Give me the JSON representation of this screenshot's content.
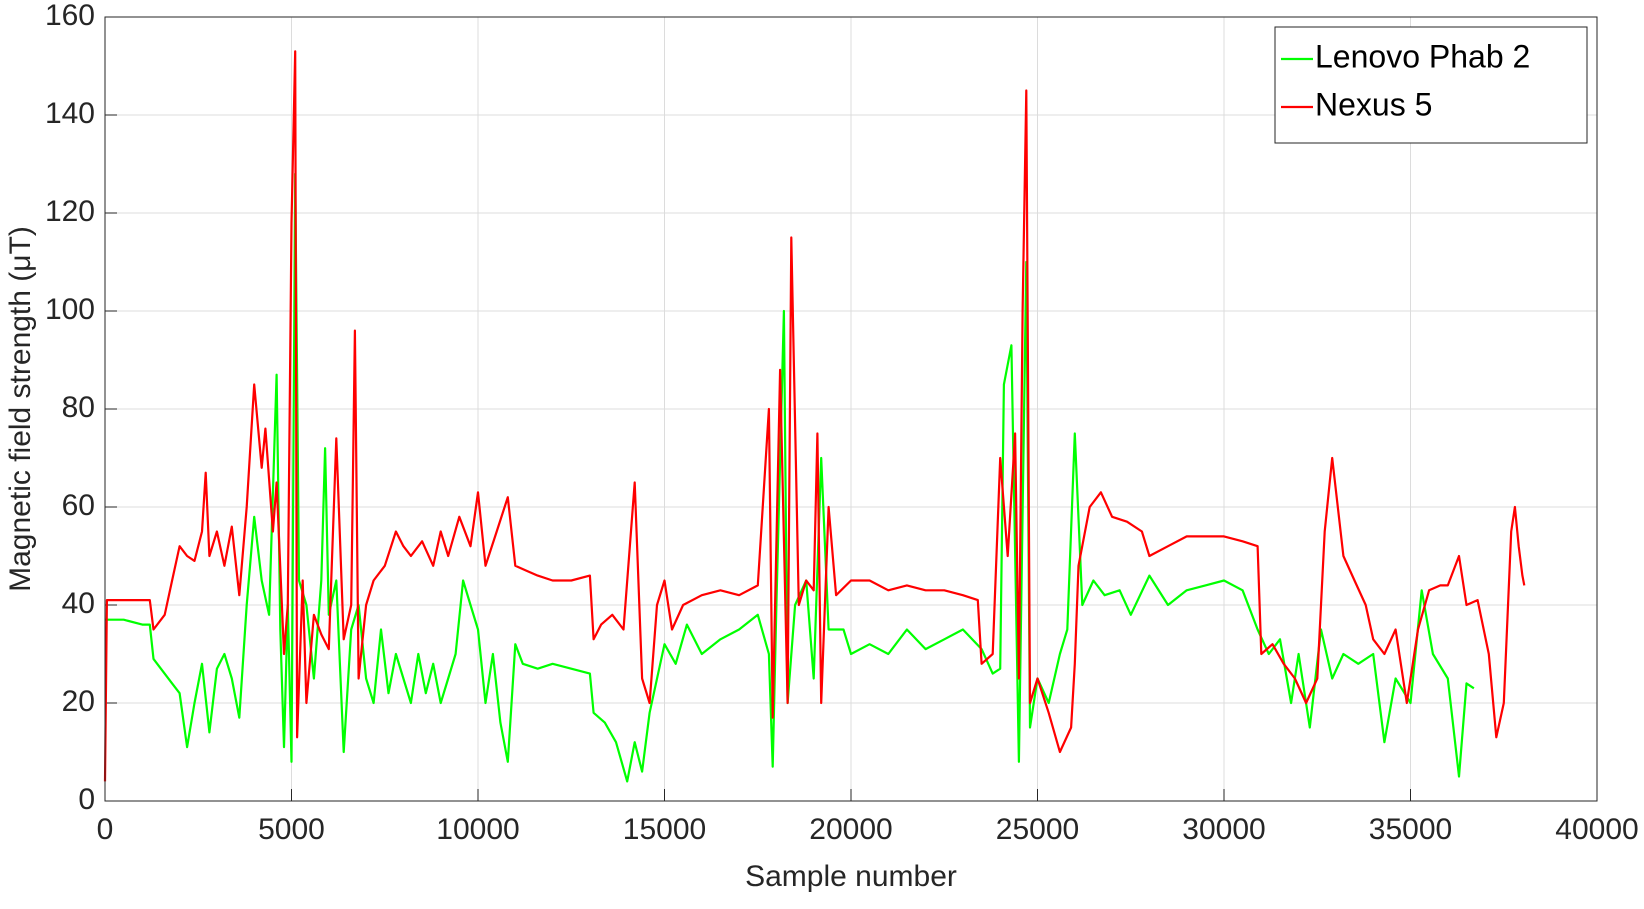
{
  "chart_data": {
    "type": "line",
    "xlabel": "Sample number",
    "ylabel": "Magnetic field strength (μT)",
    "xlim": [
      0,
      40000
    ],
    "xticks": [
      0,
      5000,
      10000,
      15000,
      20000,
      25000,
      30000,
      35000,
      40000
    ],
    "ylim": [
      0,
      160
    ],
    "yticks": [
      0,
      20,
      40,
      60,
      80,
      100,
      120,
      140,
      160
    ],
    "grid": true,
    "legend": "top-right",
    "series": [
      {
        "name": "Lenovo Phab 2",
        "color": "#00ff00",
        "x": [
          0,
          500,
          1000,
          1200,
          1300,
          1500,
          1800,
          2000,
          2200,
          2400,
          2600,
          2800,
          3000,
          3200,
          3400,
          3600,
          3800,
          4000,
          4200,
          4400,
          4600,
          4700,
          4800,
          4900,
          5000,
          5100,
          5200,
          5400,
          5600,
          5800,
          5900,
          6000,
          6200,
          6400,
          6600,
          6800,
          7000,
          7200,
          7400,
          7600,
          7800,
          8000,
          8200,
          8400,
          8600,
          8800,
          9000,
          9200,
          9400,
          9600,
          9800,
          10000,
          10200,
          10400,
          10600,
          10800,
          11000,
          11200,
          11600,
          12000,
          12500,
          13000,
          13100,
          13400,
          13700,
          14000,
          14200,
          14400,
          14600,
          15000,
          15300,
          15600,
          16000,
          16500,
          17000,
          17500,
          17800,
          17900,
          18000,
          18200,
          18300,
          18500,
          18800,
          19000,
          19200,
          19400,
          19800,
          20000,
          20500,
          21000,
          21500,
          22000,
          22500,
          23000,
          23500,
          23800,
          24000,
          24100,
          24300,
          24500,
          24700,
          24800,
          25000,
          25300,
          25600,
          25800,
          26000,
          26200,
          26500,
          26800,
          27200,
          27500,
          28000,
          28500,
          29000,
          29500,
          30000,
          30500,
          30900,
          31200,
          31500,
          31800,
          32000,
          32300,
          32600,
          32900,
          33200,
          33600,
          34000,
          34300,
          34600,
          35000,
          35300,
          35600,
          36000,
          36300,
          36500,
          36700
        ],
        "values": [
          37,
          37,
          36,
          36,
          29,
          27,
          24,
          22,
          11,
          20,
          28,
          14,
          27,
          30,
          25,
          17,
          40,
          58,
          45,
          38,
          87,
          35,
          11,
          40,
          8,
          128,
          45,
          40,
          25,
          45,
          72,
          38,
          45,
          10,
          35,
          40,
          25,
          20,
          35,
          22,
          30,
          25,
          20,
          30,
          22,
          28,
          20,
          25,
          30,
          45,
          40,
          35,
          20,
          30,
          16,
          8,
          32,
          28,
          27,
          28,
          27,
          26,
          18,
          16,
          12,
          4,
          12,
          6,
          18,
          32,
          28,
          36,
          30,
          33,
          35,
          38,
          30,
          7,
          40,
          100,
          20,
          40,
          45,
          25,
          70,
          35,
          35,
          30,
          32,
          30,
          35,
          31,
          33,
          35,
          31,
          26,
          27,
          85,
          93,
          8,
          110,
          15,
          25,
          20,
          30,
          35,
          75,
          40,
          45,
          42,
          43,
          38,
          46,
          40,
          43,
          44,
          45,
          43,
          35,
          30,
          33,
          20,
          30,
          15,
          35,
          25,
          30,
          28,
          30,
          12,
          25,
          20,
          43,
          30,
          25,
          5,
          24,
          23
        ]
      },
      {
        "name": "Nexus 5",
        "color": "#ff0000",
        "x": [
          0,
          50,
          500,
          1000,
          1200,
          1300,
          1600,
          1800,
          2000,
          2200,
          2400,
          2600,
          2700,
          2800,
          3000,
          3200,
          3400,
          3600,
          3800,
          4000,
          4200,
          4300,
          4500,
          4600,
          4800,
          4900,
          5000,
          5100,
          5150,
          5300,
          5400,
          5600,
          5800,
          6000,
          6200,
          6400,
          6600,
          6700,
          6800,
          7000,
          7200,
          7500,
          7800,
          8000,
          8200,
          8500,
          8800,
          9000,
          9200,
          9500,
          9800,
          10000,
          10200,
          10500,
          10800,
          11000,
          11300,
          11600,
          12000,
          12500,
          13000,
          13100,
          13300,
          13600,
          13900,
          14200,
          14400,
          14600,
          14800,
          15000,
          15200,
          15500,
          16000,
          16500,
          17000,
          17500,
          17800,
          17900,
          18100,
          18300,
          18400,
          18600,
          18800,
          19000,
          19100,
          19200,
          19400,
          19600,
          20000,
          20500,
          21000,
          21500,
          22000,
          22500,
          23000,
          23400,
          23500,
          23800,
          24000,
          24200,
          24400,
          24500,
          24600,
          24700,
          24800,
          25000,
          25300,
          25600,
          25900,
          26000,
          26100,
          26400,
          26700,
          27000,
          27400,
          27800,
          28000,
          28500,
          29000,
          29500,
          30000,
          30500,
          30900,
          31000,
          31300,
          31600,
          31900,
          32200,
          32500,
          32700,
          32900,
          33200,
          33500,
          33800,
          34000,
          34300,
          34600,
          34900,
          35200,
          35500,
          35800,
          36000,
          36300,
          36500,
          36800,
          37100,
          37300,
          37500,
          37700,
          37800,
          37900,
          38000,
          38050
        ],
        "values": [
          4,
          41,
          41,
          41,
          41,
          35,
          38,
          45,
          52,
          50,
          49,
          55,
          67,
          50,
          55,
          48,
          56,
          42,
          60,
          85,
          68,
          76,
          55,
          65,
          30,
          40,
          118,
          153,
          13,
          45,
          20,
          38,
          34,
          31,
          74,
          33,
          40,
          96,
          25,
          40,
          45,
          48,
          55,
          52,
          50,
          53,
          48,
          55,
          50,
          58,
          52,
          63,
          48,
          55,
          62,
          48,
          47,
          46,
          45,
          45,
          46,
          33,
          36,
          38,
          35,
          65,
          25,
          20,
          40,
          45,
          35,
          40,
          42,
          43,
          42,
          44,
          80,
          17,
          88,
          20,
          115,
          40,
          45,
          43,
          75,
          20,
          60,
          42,
          45,
          45,
          43,
          44,
          43,
          43,
          42,
          41,
          28,
          30,
          70,
          50,
          75,
          25,
          100,
          145,
          20,
          25,
          18,
          10,
          15,
          28,
          48,
          60,
          63,
          58,
          57,
          55,
          50,
          52,
          54,
          54,
          54,
          53,
          52,
          30,
          32,
          28,
          25,
          20,
          25,
          55,
          70,
          50,
          45,
          40,
          33,
          30,
          35,
          20,
          35,
          43,
          44,
          44,
          50,
          40,
          41,
          30,
          13,
          20,
          55,
          60,
          52,
          46,
          44
        ]
      }
    ]
  }
}
